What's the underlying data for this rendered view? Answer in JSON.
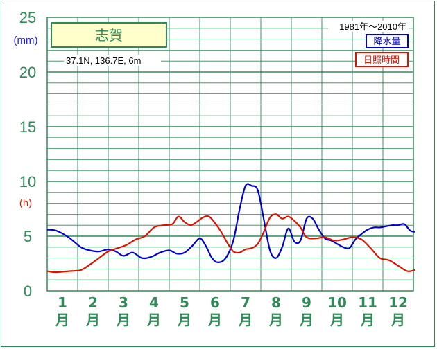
{
  "chart_data": {
    "type": "line",
    "title": "志賀",
    "location": "37.1N,  136.7E,  6m",
    "period": "1981年〜2010年",
    "categories": [
      "1",
      "2",
      "3",
      "4",
      "5",
      "6",
      "7",
      "8",
      "9",
      "10",
      "11",
      "12"
    ],
    "month_suffix": "月",
    "y_left_label": "(mm)",
    "y_right_label": "(h)",
    "yticks": [
      "0",
      "5",
      "10",
      "15",
      "20",
      "25"
    ],
    "ylim": [
      0,
      25
    ],
    "grid": true,
    "legend_position": "top-right",
    "series": [
      {
        "name": "降水量",
        "color": "#0000cc",
        "x": [
          0.5,
          0.8,
          1.2,
          1.6,
          1.9,
          2.2,
          2.5,
          2.75,
          3.0,
          3.3,
          3.6,
          3.9,
          4.2,
          4.5,
          4.75,
          5.0,
          5.25,
          5.5,
          5.7,
          5.9,
          6.1,
          6.35,
          6.6,
          6.8,
          7.0,
          7.2,
          7.4,
          7.6,
          7.8,
          8.0,
          8.2,
          8.4,
          8.6,
          8.8,
          9.0,
          9.2,
          9.4,
          9.6,
          9.8,
          10.0,
          10.2,
          10.4,
          10.6,
          10.8,
          11.0,
          11.2,
          11.4,
          11.6,
          11.8,
          12.0,
          12.2,
          12.4,
          12.55
        ],
        "values": [
          5.6,
          5.5,
          4.9,
          4.0,
          3.7,
          3.6,
          3.8,
          3.6,
          3.2,
          3.5,
          3.0,
          3.1,
          3.5,
          3.7,
          3.4,
          3.5,
          4.1,
          4.8,
          4.1,
          3.0,
          2.6,
          3.0,
          4.6,
          7.4,
          9.6,
          9.6,
          9.2,
          6.5,
          3.7,
          3.0,
          4.0,
          5.7,
          4.5,
          4.6,
          6.6,
          6.6,
          5.6,
          4.8,
          4.6,
          4.3,
          4.0,
          3.9,
          4.7,
          5.2,
          5.6,
          5.8,
          5.8,
          5.9,
          6.0,
          6.0,
          6.1,
          5.5,
          5.4
        ]
      },
      {
        "name": "日照時間",
        "color": "#dd1100",
        "x": [
          0.5,
          0.8,
          1.2,
          1.6,
          1.9,
          2.2,
          2.5,
          2.8,
          3.1,
          3.4,
          3.7,
          4.0,
          4.3,
          4.6,
          4.8,
          5.0,
          5.2,
          5.4,
          5.6,
          5.8,
          6.0,
          6.2,
          6.4,
          6.6,
          6.8,
          7.0,
          7.2,
          7.4,
          7.6,
          7.8,
          8.0,
          8.2,
          8.4,
          8.6,
          8.8,
          9.0,
          9.3,
          9.6,
          9.9,
          10.2,
          10.5,
          10.8,
          11.1,
          11.4,
          11.7,
          12.0,
          12.3,
          12.55
        ],
        "values": [
          1.8,
          1.7,
          1.8,
          1.9,
          2.4,
          3.0,
          3.6,
          3.9,
          4.2,
          4.7,
          5.0,
          5.8,
          6.0,
          6.1,
          6.8,
          6.3,
          6.0,
          6.3,
          6.7,
          6.8,
          6.2,
          5.4,
          4.4,
          3.6,
          3.5,
          3.8,
          3.9,
          4.3,
          5.4,
          6.7,
          7.0,
          6.6,
          6.8,
          6.4,
          5.8,
          4.9,
          4.8,
          4.9,
          4.6,
          4.7,
          4.9,
          4.7,
          3.9,
          3.0,
          2.8,
          2.3,
          1.8,
          1.9
        ]
      }
    ]
  }
}
